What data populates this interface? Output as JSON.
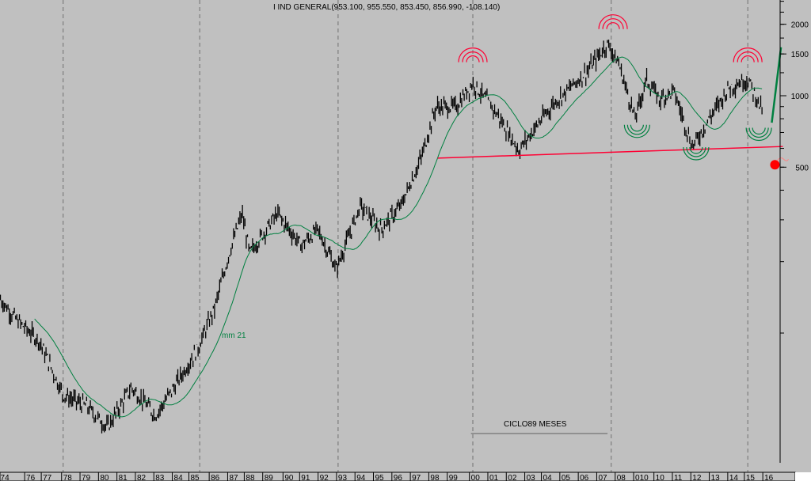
{
  "chart_data": {
    "type": "line",
    "subtype": "ohlc-bars-log-scale",
    "title": "I IND GENERAL(953.100, 955.550, 853.450, 856.990, -108.140)",
    "y_scale": "log",
    "ylim": [
      28,
      2530
    ],
    "y_ticks": [
      2000,
      1500,
      1000,
      500
    ],
    "x_tick_labels": [
      "74",
      "76",
      "77",
      "78",
      "79",
      "80",
      "81",
      "82",
      "83",
      "84",
      "85",
      "86",
      "87",
      "88",
      "89",
      "90",
      "91",
      "92",
      "93",
      "94",
      "95",
      "96",
      "97",
      "98",
      "99",
      "00",
      "01",
      "02",
      "03",
      "04",
      "05",
      "06",
      "07",
      "08",
      "010",
      "10",
      "11",
      "12",
      "13",
      "14",
      "15",
      "16"
    ],
    "x_tick_years": [
      1974.4,
      1975.8,
      1976.7,
      1977.8,
      1978.8,
      1979.8,
      1980.8,
      1981.8,
      1982.8,
      1983.8,
      1984.7,
      1985.8,
      1986.8,
      1987.7,
      1988.7,
      1989.8,
      1990.7,
      1991.7,
      1992.7,
      1993.7,
      1994.7,
      1995.7,
      1996.7,
      1997.7,
      1998.7,
      1999.9,
      2000.9,
      2001.9,
      2002.9,
      2003.8,
      2004.8,
      2005.8,
      2006.8,
      2007.8,
      2008.8,
      2009.9,
      2010.9,
      2011.9,
      2012.9,
      2013.9,
      2014.8,
      2015.8
    ],
    "series": [
      {
        "name": "I IND GENERAL",
        "color": "#000000",
        "points": [
          [
            1974.4,
            139
          ],
          [
            1975.3,
            113
          ],
          [
            1976.5,
            93
          ],
          [
            1977.8,
            55
          ],
          [
            1979.1,
            49
          ],
          [
            1980.2,
            40
          ],
          [
            1981.5,
            59
          ],
          [
            1982.8,
            45
          ],
          [
            1983.8,
            59
          ],
          [
            1985.1,
            86
          ],
          [
            1986.0,
            127
          ],
          [
            1986.8,
            217
          ],
          [
            1987.5,
            319
          ],
          [
            1987.9,
            217
          ],
          [
            1989.4,
            319
          ],
          [
            1990.7,
            234
          ],
          [
            1991.6,
            273
          ],
          [
            1992.6,
            186
          ],
          [
            1993.9,
            344
          ],
          [
            1995.0,
            273
          ],
          [
            1996.1,
            344
          ],
          [
            1997.2,
            546
          ],
          [
            1998.0,
            898
          ],
          [
            1999.1,
            898
          ],
          [
            2000.0,
            1131
          ],
          [
            2001.2,
            864
          ],
          [
            2002.5,
            589
          ],
          [
            2003.1,
            687
          ],
          [
            2004.4,
            933
          ],
          [
            2006.2,
            1268
          ],
          [
            2007.3,
            1660
          ],
          [
            2007.9,
            1370
          ],
          [
            2008.8,
            800
          ],
          [
            2009.4,
            1175
          ],
          [
            2010.1,
            970
          ],
          [
            2010.9,
            1047
          ],
          [
            2011.9,
            611
          ],
          [
            2012.8,
            800
          ],
          [
            2013.9,
            1088
          ],
          [
            2014.9,
            1175
          ],
          [
            2015.7,
            864
          ]
        ]
      },
      {
        "name": "mm 21",
        "color": "#008040",
        "type": "moving-average",
        "period": 21
      }
    ],
    "annotations": {
      "mm_label": "mm 21",
      "cycle_label": "CICLO89 MESES",
      "cycle_line_years": [
        1999.9,
        2007.3
      ],
      "cycle_markers_years": [
        1977.8,
        1985.2,
        1992.7,
        2000.0,
        2007.5,
        2014.9
      ],
      "support_line": {
        "color": "#ff0033",
        "from": [
          1998.1,
          546
        ],
        "to": [
          2016.8,
          611
        ]
      },
      "projection_arrow": {
        "color": "#008040",
        "from": [
          2016.2,
          770
        ],
        "to": [
          2016.7,
          1600
        ]
      },
      "top_arcs": {
        "color": "#ff0033",
        "at": [
          [
            2000.0,
            1450
          ],
          [
            2007.6,
            2000
          ],
          [
            2014.9,
            1450
          ]
        ]
      },
      "bottom_arcs": {
        "color": "#008040",
        "at": [
          [
            2008.9,
            720
          ],
          [
            2012.1,
            580
          ],
          [
            2015.5,
            700
          ]
        ]
      },
      "bomb_marker": {
        "color": "#ff0000",
        "at": [
          2016.5,
          520
        ]
      }
    }
  }
}
